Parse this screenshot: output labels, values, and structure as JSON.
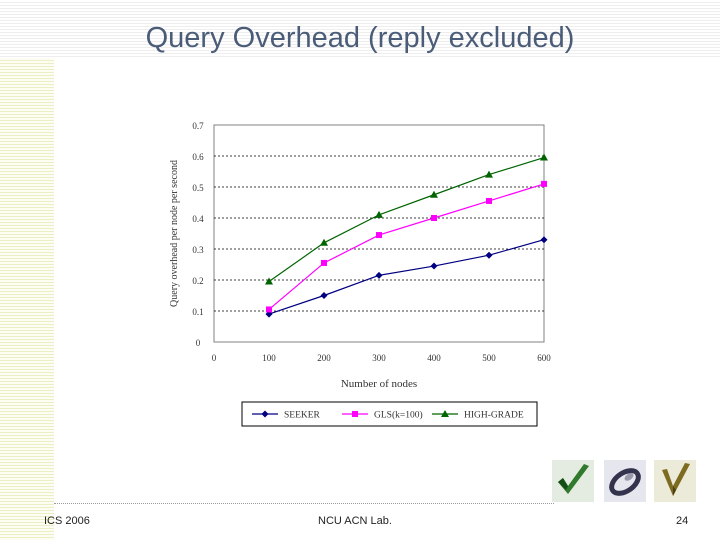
{
  "slide": {
    "title": "Query Overhead (reply excluded)",
    "footer_left": "ICS 2006",
    "footer_center": "NCU ACN Lab.",
    "page_number": "24"
  },
  "chart_data": {
    "type": "line",
    "title": "",
    "xlabel": "Number of nodes",
    "ylabel": "Query overhead per node per second",
    "x": [
      100,
      200,
      300,
      400,
      500,
      600
    ],
    "x_ticks": [
      "0",
      "100",
      "200",
      "300",
      "400",
      "500",
      "600"
    ],
    "y_ticks": [
      "0",
      "0.1",
      "0.2",
      "0.3",
      "0.4",
      "0.5",
      "0.6",
      "0.7"
    ],
    "xlim": [
      0,
      600
    ],
    "ylim": [
      0,
      0.7
    ],
    "grid": "horizontal dotted",
    "legend_position": "bottom",
    "series": [
      {
        "name": "SEEKER",
        "color": "#000080",
        "marker": "diamond",
        "values": [
          0.09,
          0.15,
          0.215,
          0.245,
          0.28,
          0.33
        ]
      },
      {
        "name": "GLS(k=100)",
        "color": "#ff00ff",
        "marker": "square",
        "values": [
          0.105,
          0.255,
          0.345,
          0.4,
          0.455,
          0.51
        ]
      },
      {
        "name": "HIGH-GRADE",
        "color": "#006400",
        "marker": "triangle",
        "values": [
          0.195,
          0.32,
          0.41,
          0.475,
          0.54,
          0.595
        ]
      }
    ]
  },
  "logos": [
    {
      "icon": "green-checkmark-logo"
    },
    {
      "icon": "grey-ring-logo"
    },
    {
      "icon": "olive-v-logo"
    }
  ]
}
